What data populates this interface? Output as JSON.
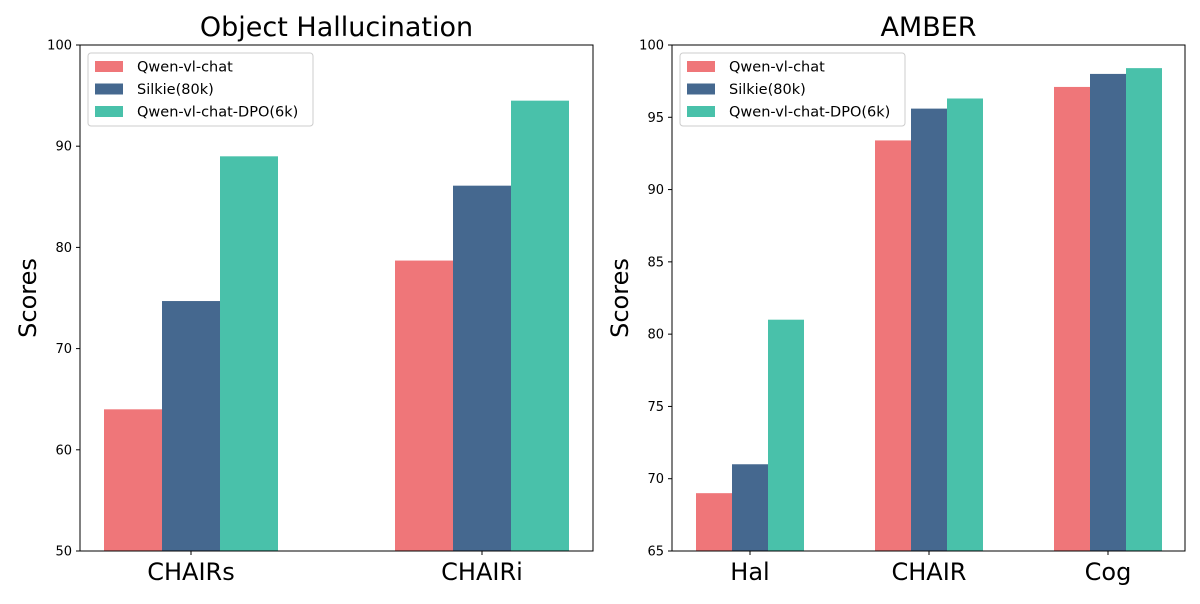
{
  "chart_data": [
    {
      "type": "bar",
      "title": "Object Hallucination",
      "xlabel": "",
      "ylabel": "Scores",
      "categories": [
        "CHAIRs",
        "CHAIRi"
      ],
      "ylim": [
        50,
        100
      ],
      "yticks": [
        50,
        60,
        70,
        80,
        90,
        100
      ],
      "legend": "top-left",
      "grid": false,
      "series": [
        {
          "name": "Qwen-vl-chat",
          "color": "#ef7679",
          "values": [
            64.0,
            78.7
          ]
        },
        {
          "name": "Silkie(80k)",
          "color": "#45688f",
          "values": [
            74.7,
            86.1
          ]
        },
        {
          "name": "Qwen-vl-chat-DPO(6k)",
          "color": "#49c1aa",
          "values": [
            89.0,
            94.5
          ]
        }
      ]
    },
    {
      "type": "bar",
      "title": "AMBER",
      "xlabel": "",
      "ylabel": "Scores",
      "categories": [
        "Hal",
        "CHAIR",
        "Cog"
      ],
      "ylim": [
        65,
        100
      ],
      "yticks": [
        65,
        70,
        75,
        80,
        85,
        90,
        95,
        100
      ],
      "legend": "top-left",
      "grid": false,
      "series": [
        {
          "name": "Qwen-vl-chat",
          "color": "#ef7679",
          "values": [
            69.0,
            93.4,
            97.1
          ]
        },
        {
          "name": "Silkie(80k)",
          "color": "#45688f",
          "values": [
            71.0,
            95.6,
            98.0
          ]
        },
        {
          "name": "Qwen-vl-chat-DPO(6k)",
          "color": "#49c1aa",
          "values": [
            81.0,
            96.3,
            98.4
          ]
        }
      ]
    }
  ]
}
